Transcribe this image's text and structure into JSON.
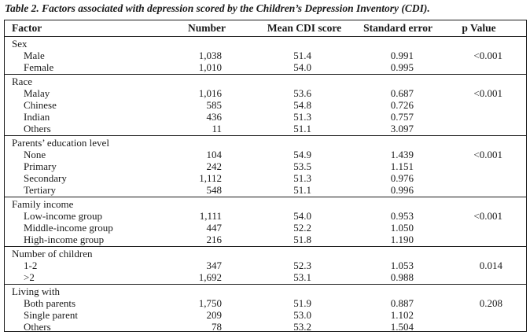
{
  "caption": "Table 2. Factors associated with depression scored by the Children’s Depression Inventory (CDI).",
  "headers": {
    "factor": "Factor",
    "number": "Number",
    "mean": "Mean CDI score",
    "se": "Standard error",
    "p": "p Value"
  },
  "groups": [
    {
      "title": "Sex",
      "p": "<0.001",
      "rows": [
        {
          "label": "Male",
          "number": "1,038",
          "mean": "51.4",
          "se": "0.991"
        },
        {
          "label": "Female",
          "number": "1,010",
          "mean": "54.0",
          "se": "0.995"
        }
      ]
    },
    {
      "title": "Race",
      "p": "<0.001",
      "rows": [
        {
          "label": "Malay",
          "number": "1,016",
          "mean": "53.6",
          "se": "0.687"
        },
        {
          "label": "Chinese",
          "number": "585",
          "mean": "54.8",
          "se": "0.726"
        },
        {
          "label": "Indian",
          "number": "436",
          "mean": "51.3",
          "se": "0.757"
        },
        {
          "label": "Others",
          "number": "11",
          "mean": "51.1",
          "se": "3.097"
        }
      ]
    },
    {
      "title": "Parents’ education level",
      "p": "<0.001",
      "rows": [
        {
          "label": "None",
          "number": "104",
          "mean": "54.9",
          "se": "1.439"
        },
        {
          "label": "Primary",
          "number": "242",
          "mean": "53.5",
          "se": "1.151"
        },
        {
          "label": "Secondary",
          "number": "1,112",
          "mean": "51.3",
          "se": "0.976"
        },
        {
          "label": "Tertiary",
          "number": "548",
          "mean": "51.1",
          "se": "0.996"
        }
      ]
    },
    {
      "title": "Family income",
      "p": "<0.001",
      "rows": [
        {
          "label": "Low-income group",
          "number": "1,111",
          "mean": "54.0",
          "se": "0.953"
        },
        {
          "label": "Middle-income group",
          "number": "447",
          "mean": "52.2",
          "se": "1.050"
        },
        {
          "label": "High-income group",
          "number": "216",
          "mean": "51.8",
          "se": "1.190"
        }
      ]
    },
    {
      "title": "Number of children",
      "p": "0.014",
      "rows": [
        {
          "label": "1-2",
          "number": "347",
          "mean": "52.3",
          "se": "1.053"
        },
        {
          "label": ">2",
          "number": "1,692",
          "mean": "53.1",
          "se": "0.988"
        }
      ]
    },
    {
      "title": "Living with",
      "p": "0.208",
      "rows": [
        {
          "label": "Both parents",
          "number": "1,750",
          "mean": "51.9",
          "se": "0.887"
        },
        {
          "label": "Single parent",
          "number": "209",
          "mean": "53.0",
          "se": "1.102"
        },
        {
          "label": "Others",
          "number": "78",
          "mean": "53.2",
          "se": "1.504"
        }
      ]
    }
  ]
}
